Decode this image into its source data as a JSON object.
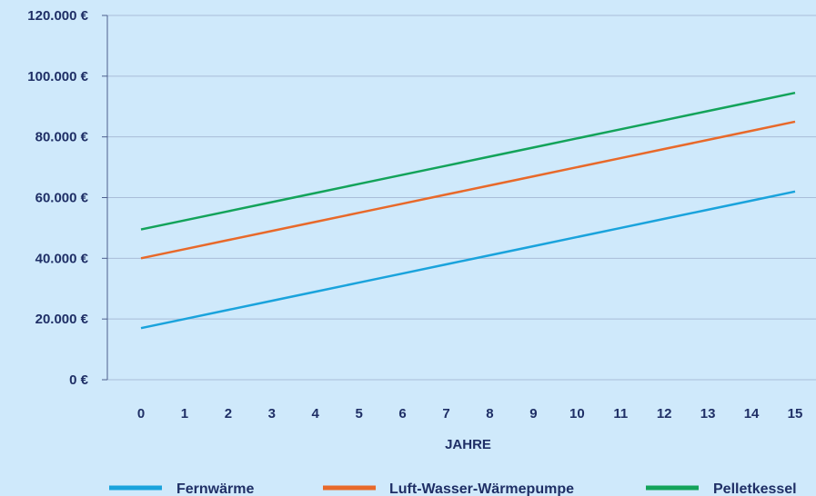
{
  "chart_data": {
    "type": "line",
    "xlabel": "JAHRE",
    "ylabel": "",
    "x": [
      0,
      1,
      2,
      3,
      4,
      5,
      6,
      7,
      8,
      9,
      10,
      11,
      12,
      13,
      14,
      15
    ],
    "ylim": [
      0,
      120000
    ],
    "yticks": [
      {
        "value": 0,
        "label": "0 €"
      },
      {
        "value": 20000,
        "label": "20.000 €"
      },
      {
        "value": 40000,
        "label": "40.000 €"
      },
      {
        "value": 60000,
        "label": "60.000 €"
      },
      {
        "value": 80000,
        "label": "80.000 €"
      },
      {
        "value": 100000,
        "label": "100.000 €"
      },
      {
        "value": 120000,
        "label": "120.000 €"
      }
    ],
    "grid": "horizontal",
    "legend_position": "bottom",
    "series": [
      {
        "name": "Fernwärme",
        "color": "#1aa3dc",
        "values": [
          17000,
          20000,
          23000,
          26000,
          29000,
          32000,
          35000,
          38000,
          41000,
          44000,
          47000,
          50000,
          53000,
          56000,
          59000,
          62000
        ]
      },
      {
        "name": "Luft-Wasser-Wärmepumpe",
        "color": "#e8692a",
        "values": [
          40000,
          43000,
          46000,
          49000,
          52000,
          55000,
          58000,
          61000,
          64000,
          67000,
          70000,
          73000,
          76000,
          79000,
          82000,
          85000
        ]
      },
      {
        "name": "Pelletkessel",
        "color": "#13a35a",
        "values": [
          49500,
          52500,
          55500,
          58500,
          61500,
          64500,
          67500,
          70500,
          73500,
          76500,
          79500,
          82500,
          85500,
          88500,
          91500,
          94500
        ]
      }
    ]
  }
}
